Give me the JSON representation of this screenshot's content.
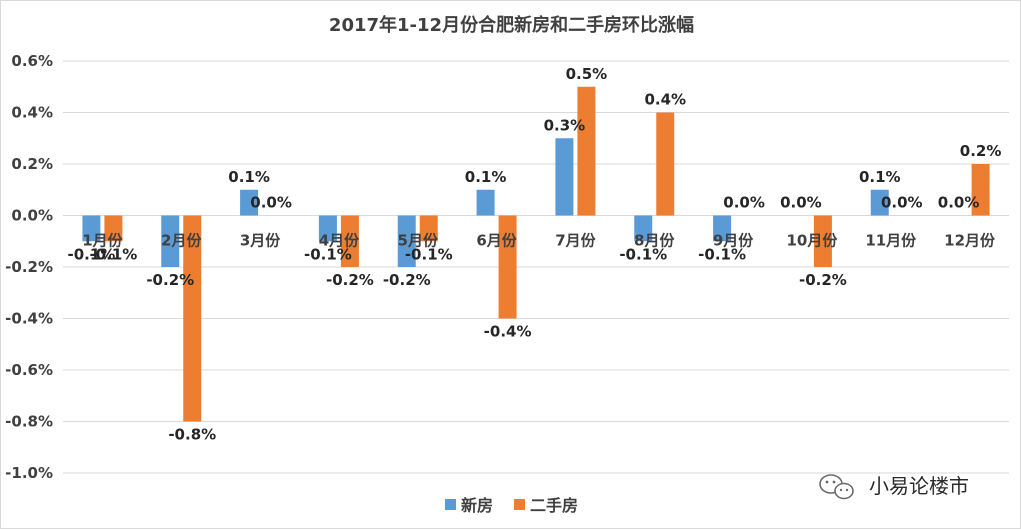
{
  "chart_data": {
    "type": "bar",
    "title": "2017年1-12月份合肥新房和二手房环比涨幅",
    "categories": [
      "1月份",
      "2月份",
      "3月份",
      "4月份",
      "5月份",
      "6月份",
      "7月份",
      "8月份",
      "9月份",
      "10月份",
      "11月份",
      "12月份"
    ],
    "series": [
      {
        "name": "新房",
        "color": "#5b9bd5",
        "values": [
          -0.1,
          -0.2,
          0.1,
          -0.1,
          -0.2,
          0.1,
          0.3,
          -0.1,
          -0.1,
          0.0,
          0.1,
          0.0
        ],
        "labels": [
          "-0.1%",
          "-0.2%",
          "0.1%",
          "-0.1%",
          "-0.2%",
          "0.1%",
          "0.3%",
          "-0.1%",
          "-0.1%",
          "0.0%",
          "0.1%",
          "0.0%"
        ]
      },
      {
        "name": "二手房",
        "color": "#ed7d31",
        "values": [
          -0.1,
          -0.8,
          0.0,
          -0.2,
          -0.1,
          -0.4,
          0.5,
          0.4,
          0.0,
          -0.2,
          0.0,
          0.2
        ],
        "labels": [
          "-0.1%",
          "-0.8%",
          "0.0%",
          "-0.2%",
          "-0.1%",
          "-0.4%",
          "0.5%",
          "0.4%",
          "0.0%",
          "-0.2%",
          "0.0%",
          "0.2%"
        ]
      }
    ],
    "ylim": [
      -1.0,
      0.6
    ],
    "yticks": [
      0.6,
      0.4,
      0.2,
      0.0,
      -0.2,
      -0.4,
      -0.6,
      -0.8,
      -1.0
    ],
    "ytick_labels": [
      "0.6%",
      "0.4%",
      "0.2%",
      "0.0%",
      "-0.2%",
      "-0.4%",
      "-0.6%",
      "-0.8%",
      "-1.0%"
    ],
    "grid": true,
    "legend_position": "bottom"
  },
  "watermark": {
    "text": "小易论楼市",
    "icon": "wechat-icon"
  }
}
